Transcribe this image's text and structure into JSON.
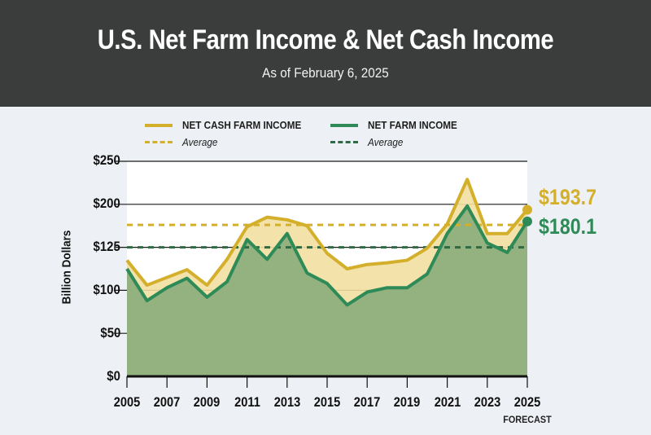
{
  "header": {
    "title": "U.S. Net Farm Income & Net Cash Income",
    "subtitle": "As of February 6, 2025"
  },
  "legend": {
    "cash": {
      "label": "NET CASH FARM INCOME",
      "avg_label": "Average",
      "color": "#d4af2c"
    },
    "farm": {
      "label": "NET FARM INCOME",
      "avg_label": "Average",
      "color": "#2e8b57"
    }
  },
  "axes": {
    "ylabel": "Billion Dollars",
    "yticks": [
      "$250",
      "$200",
      "$125",
      "$100",
      "$50",
      "$0"
    ],
    "xticks": [
      "2005",
      "2007",
      "2009",
      "2011",
      "2013",
      "2015",
      "2017",
      "2019",
      "2021",
      "2023",
      "2025"
    ],
    "forecast_label": "FORECAST"
  },
  "end_labels": {
    "cash": "$193.7",
    "farm": "$180.1"
  },
  "chart_data": {
    "type": "area",
    "title": "U.S. Net Farm Income & Net Cash Income",
    "subtitle": "As of February 6, 2025",
    "xlabel": "",
    "ylabel": "Billion Dollars",
    "ylim": [
      0,
      250
    ],
    "ytick_labels": [
      "$0",
      "$50",
      "$100",
      "$125",
      "$200",
      "$250"
    ],
    "grid": true,
    "legend_position": "top",
    "x": [
      2005,
      2006,
      2007,
      2008,
      2009,
      2010,
      2011,
      2012,
      2013,
      2014,
      2015,
      2016,
      2017,
      2018,
      2019,
      2020,
      2021,
      2022,
      2023,
      2024,
      2025
    ],
    "series": [
      {
        "name": "Net Cash Farm Income",
        "color": "#d4af2c",
        "values": [
          135,
          106,
          115,
          124,
          106,
          136,
          174,
          185,
          182,
          175,
          143,
          125,
          130,
          132,
          135,
          149,
          177,
          229,
          166,
          166,
          193.7
        ]
      },
      {
        "name": "Net Farm Income",
        "color": "#2e8b57",
        "values": [
          125,
          88,
          103,
          114,
          92,
          110,
          159,
          136,
          166,
          120,
          108,
          83,
          98,
          103,
          103,
          119,
          166,
          198,
          155,
          144,
          180.1
        ]
      }
    ],
    "averages": [
      {
        "name": "Net Cash Farm Income Average",
        "value": 176
      },
      {
        "name": "Net Farm Income Average",
        "value": 150
      }
    ],
    "annotations": [
      "$193.7",
      "$180.1",
      "2025 FORECAST"
    ]
  }
}
